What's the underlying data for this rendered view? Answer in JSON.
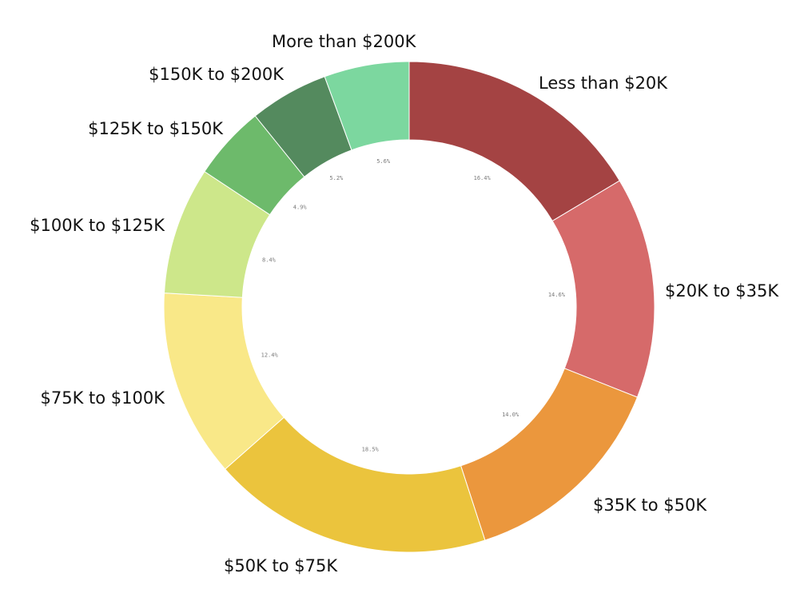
{
  "chart_data": {
    "type": "pie",
    "subtype": "donut",
    "categories": [
      "Less than $20K",
      "$20K to $35K",
      "$35K to $50K",
      "$50K to $75K",
      "$75K to $100K",
      "$100K to $125K",
      "$125K to $150K",
      "$150K to $200K",
      "More than $200K"
    ],
    "values": [
      16.4,
      14.6,
      14.0,
      18.5,
      12.4,
      8.4,
      4.9,
      5.2,
      5.6
    ],
    "value_labels": [
      "16.4%",
      "14.6%",
      "14.0%",
      "18.5%",
      "12.4%",
      "8.4%",
      "4.9%",
      "5.2%",
      "5.6%"
    ],
    "colors": [
      "#a44343",
      "#d66a6a",
      "#eb973d",
      "#ebc43d",
      "#f9e888",
      "#cde78a",
      "#6dba6b",
      "#548a5e",
      "#7cd79f"
    ],
    "start": "12 o'clock",
    "direction": "clockwise",
    "legend": "none",
    "title": ""
  }
}
